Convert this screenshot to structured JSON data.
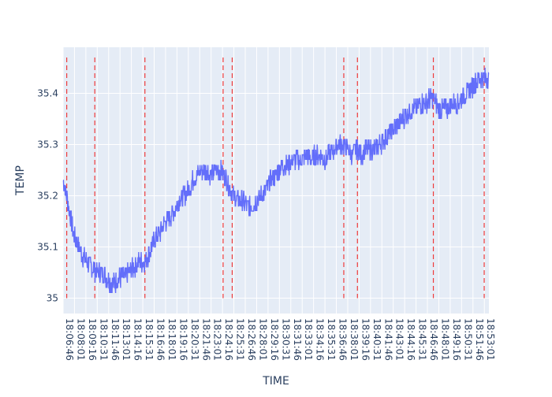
{
  "chart_data": {
    "type": "line",
    "title": "",
    "xlabel": "TIME",
    "ylabel": "TEMP",
    "ylim": [
      34.97,
      35.49
    ],
    "grid": true,
    "legend": "none",
    "colors": {
      "plot_bg": "#e5ecf6",
      "grid": "#ffffff",
      "series": "#636efa",
      "markers": "#ef3b3b",
      "text": "#2a3f5f"
    },
    "x_range": [
      "18:06:46",
      "18:53:31"
    ],
    "x_ticks": [
      "18:06:46",
      "18:08:01",
      "18:09:16",
      "18:10:31",
      "18:11:46",
      "18:13:01",
      "18:14:16",
      "18:15:31",
      "18:16:46",
      "18:18:01",
      "18:19:16",
      "18:20:31",
      "18:21:46",
      "18:23:01",
      "18:24:16",
      "18:25:31",
      "18:26:46",
      "18:28:01",
      "18:29:16",
      "18:30:31",
      "18:31:46",
      "18:33:01",
      "18:34:16",
      "18:35:31",
      "18:36:46",
      "18:38:01",
      "18:39:16",
      "18:40:31",
      "18:41:46",
      "18:43:01",
      "18:44:16",
      "18:45:31",
      "18:46:46",
      "18:48:01",
      "18:49:16",
      "18:50:31",
      "18:51:46",
      "18:53:01"
    ],
    "y_ticks": [
      35,
      35.1,
      35.2,
      35.3,
      35.4
    ],
    "y_tick_labels": [
      "35",
      "35.1",
      "35.2",
      "35.3",
      "35.4"
    ],
    "series": [
      {
        "noise": 0.02,
        "x": [
          "18:06:46",
          "18:07:10",
          "18:07:40",
          "18:08:00",
          "18:08:30",
          "18:09:00",
          "18:09:30",
          "18:10:00",
          "18:10:30",
          "18:11:00",
          "18:11:30",
          "18:12:00",
          "18:12:30",
          "18:13:00",
          "18:13:30",
          "18:14:00",
          "18:14:30",
          "18:15:00",
          "18:15:30",
          "18:16:00",
          "18:16:30",
          "18:17:00",
          "18:17:30",
          "18:18:00",
          "18:18:30",
          "18:19:00",
          "18:19:30",
          "18:20:00",
          "18:20:30",
          "18:21:00",
          "18:21:30",
          "18:22:00",
          "18:22:30",
          "18:23:00",
          "18:23:30",
          "18:24:00",
          "18:24:30",
          "18:25:00",
          "18:25:30",
          "18:26:00",
          "18:26:30",
          "18:27:00",
          "18:27:30",
          "18:28:00",
          "18:28:30",
          "18:29:00",
          "18:29:30",
          "18:30:00",
          "18:30:30",
          "18:31:00",
          "18:31:30",
          "18:32:00",
          "18:32:30",
          "18:33:00",
          "18:33:30",
          "18:34:00",
          "18:34:30",
          "18:35:00",
          "18:35:30",
          "18:36:00",
          "18:36:30",
          "18:37:00",
          "18:37:30",
          "18:38:00",
          "18:38:30",
          "18:39:00",
          "18:39:30",
          "18:40:00",
          "18:40:30",
          "18:41:00",
          "18:41:30",
          "18:42:00",
          "18:42:30",
          "18:43:00",
          "18:43:30",
          "18:44:00",
          "18:44:30",
          "18:45:00",
          "18:45:30",
          "18:46:00",
          "18:46:30",
          "18:47:00",
          "18:47:30",
          "18:48:00",
          "18:48:30",
          "18:49:00",
          "18:49:30",
          "18:50:00",
          "18:50:30",
          "18:51:00",
          "18:51:30",
          "18:52:00",
          "18:52:30",
          "18:53:00",
          "18:53:31"
        ],
        "y": [
          35.23,
          35.2,
          35.15,
          35.12,
          35.1,
          35.08,
          35.07,
          35.06,
          35.05,
          35.05,
          35.04,
          35.03,
          35.03,
          35.04,
          35.04,
          35.05,
          35.06,
          35.07,
          35.07,
          35.08,
          35.1,
          35.12,
          35.13,
          35.15,
          35.16,
          35.17,
          35.19,
          35.2,
          35.21,
          35.23,
          35.24,
          35.25,
          35.25,
          35.24,
          35.25,
          35.25,
          35.24,
          35.22,
          35.2,
          35.19,
          35.19,
          35.18,
          35.18,
          35.19,
          35.2,
          35.21,
          35.23,
          35.24,
          35.25,
          35.26,
          35.26,
          35.27,
          35.27,
          35.27,
          35.28,
          35.27,
          35.28,
          35.28,
          35.27,
          35.28,
          35.29,
          35.3,
          35.3,
          35.29,
          35.28,
          35.29,
          35.28,
          35.29,
          35.29,
          35.29,
          35.3,
          35.31,
          35.32,
          35.33,
          35.34,
          35.35,
          35.36,
          35.37,
          35.37,
          35.38,
          35.38,
          35.39,
          35.39,
          35.37,
          35.37,
          35.37,
          35.38,
          35.38,
          35.39,
          35.4,
          35.41,
          35.42,
          35.43,
          35.43,
          35.43
        ]
      }
    ],
    "vertical_markers": [
      "18:07:10",
      "18:10:15",
      "18:15:45",
      "18:24:20",
      "18:25:20",
      "18:37:35",
      "18:39:05",
      "18:47:25",
      "18:53:00"
    ]
  }
}
